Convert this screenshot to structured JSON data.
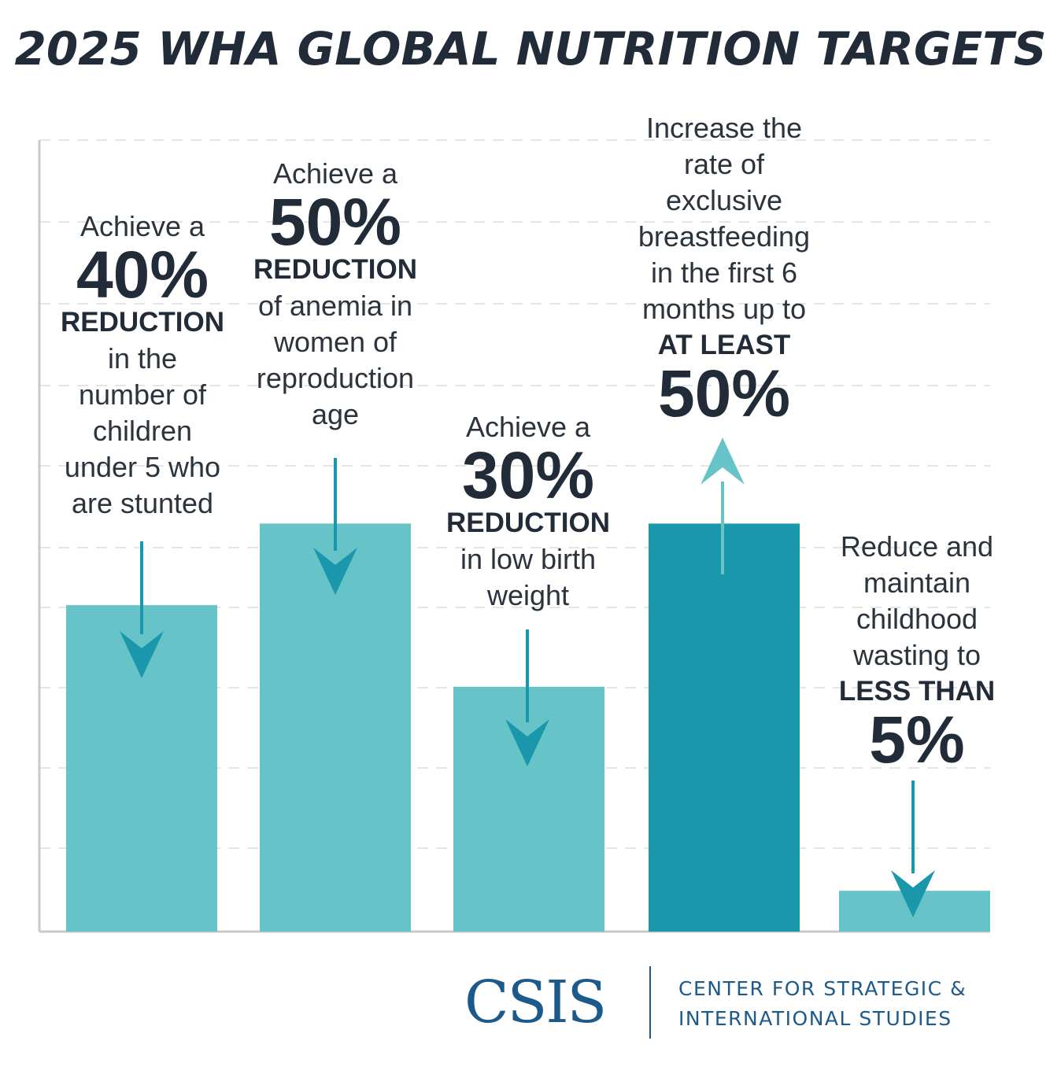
{
  "title": "2025 WHA GLOBAL NUTRITION TARGETS",
  "colors": {
    "bar_light": "#66c4c8",
    "bar_dark": "#1a97ab",
    "arrow_dark": "#1a97ab",
    "arrow_light": "#66c4c8",
    "text": "#222b38",
    "logo": "#1d5a8c"
  },
  "chart_data": {
    "type": "bar",
    "title": "2025 WHA GLOBAL NUTRITION TARGETS",
    "categories": [
      "stunting",
      "anemia",
      "low birth weight",
      "exclusive breastfeeding",
      "wasting"
    ],
    "values": [
      40,
      50,
      30,
      50,
      5
    ],
    "ylim": [
      0,
      97
    ],
    "grid": true,
    "arrows": [
      "down",
      "down",
      "down",
      "up",
      "down"
    ]
  },
  "labels": [
    {
      "pre": "Achieve a",
      "big": "40%",
      "bold": "REDUCTION",
      "post": [
        "in the",
        "number of",
        "children",
        "under 5 who",
        "are stunted"
      ]
    },
    {
      "pre": "Achieve a",
      "big": "50%",
      "bold": "REDUCTION",
      "post": [
        "of anemia in",
        "women of",
        "reproduction",
        "age"
      ]
    },
    {
      "pre": "Achieve a",
      "big": "30%",
      "bold": "REDUCTION",
      "post": [
        "in low birth",
        "weight"
      ]
    },
    {
      "pre_lines": [
        "Increase the",
        "rate of",
        "exclusive",
        "breastfeeding",
        "in the first 6",
        "months up to"
      ],
      "bold": "AT LEAST",
      "big": "50%"
    },
    {
      "pre_lines": [
        "Reduce and",
        "maintain",
        "childhood",
        "wasting to"
      ],
      "bold": "LESS THAN",
      "big": "5%"
    }
  ],
  "logo": {
    "mark": "CSIS",
    "line1": "CENTER FOR STRATEGIC &",
    "line2": "INTERNATIONAL STUDIES"
  }
}
